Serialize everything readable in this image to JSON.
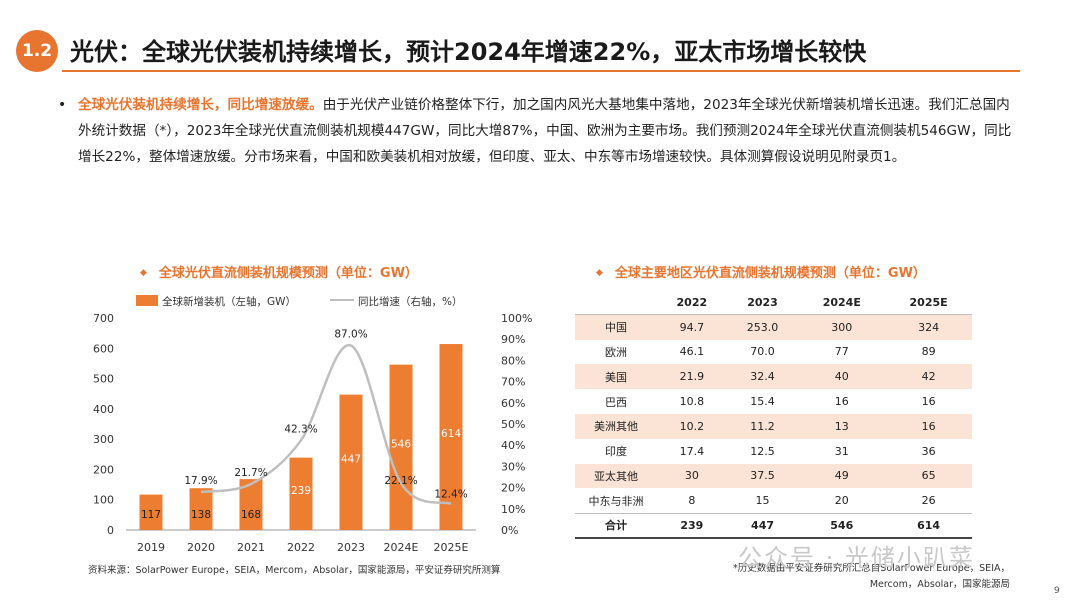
{
  "header": {
    "section_number": "1.2",
    "title": "光伏：全球光伏装机持续增长，预计2024年增速22%，亚太市场增长较快"
  },
  "bullet": {
    "highlight": "全球光伏装机持续增长，同比增速放缓。",
    "text": "由于光伏产业链价格整体下行，加之国内风光大基地集中落地，2023年全球光伏新增装机增长迅速。我们汇总国内外统计数据（*），2023年全球光伏直流侧装机规模447GW，同比大增87%，中国、欧洲为主要市场。我们预测2024年全球光伏直流侧装机546GW，同比增长22%，整体增速放缓。分市场来看，中国和欧美装机相对放缓，但印度、亚太、中东等市场增速较快。具体测算假设说明见附录页1。"
  },
  "chart_data": [
    {
      "type": "bar",
      "title": "全球光伏直流侧装机规模预测（单位：GW）",
      "categories": [
        "2019",
        "2020",
        "2021",
        "2022",
        "2023",
        "2024E",
        "2025E"
      ],
      "series": [
        {
          "name": "全球新增装机（左轴，GW）",
          "type": "bar",
          "axis": "left",
          "values": [
            117,
            138,
            168,
            239,
            447,
            546,
            614
          ],
          "labels": [
            "117",
            "138",
            "168",
            "239",
            "447",
            "546",
            "614"
          ]
        },
        {
          "name": "同比增速（右轴，%）",
          "type": "line",
          "axis": "right",
          "values": [
            null,
            17.9,
            21.7,
            42.3,
            87.0,
            22.1,
            12.4
          ],
          "labels": [
            "",
            "17.9%",
            "21.7%",
            "42.3%",
            "87.0%",
            "22.1%",
            "12.4%"
          ]
        }
      ],
      "ylim_left": [
        0,
        700
      ],
      "yticks_left": [
        "0",
        "100",
        "200",
        "300",
        "400",
        "500",
        "600",
        "700"
      ],
      "ylim_right": [
        0,
        100
      ],
      "yticks_right": [
        "0%",
        "10%",
        "20%",
        "30%",
        "40%",
        "50%",
        "60%",
        "70%",
        "80%",
        "90%",
        "100%"
      ],
      "grid": false,
      "legend": "top",
      "colors": {
        "bar": "#ed7d31",
        "line": "#bfbfbf",
        "bar_label": "#ffffff"
      }
    },
    {
      "type": "table",
      "title": "全球主要地区光伏直流侧装机规模预测（单位：GW）",
      "columns": [
        "",
        "2022",
        "2023",
        "2024E",
        "2025E"
      ],
      "rows": [
        [
          "中国",
          "94.7",
          "253.0",
          "300",
          "324"
        ],
        [
          "欧洲",
          "46.1",
          "70.0",
          "77",
          "89"
        ],
        [
          "美国",
          "21.9",
          "32.4",
          "40",
          "42"
        ],
        [
          "巴西",
          "10.8",
          "15.4",
          "16",
          "16"
        ],
        [
          "美洲其他",
          "10.2",
          "11.2",
          "13",
          "16"
        ],
        [
          "印度",
          "17.4",
          "12.5",
          "31",
          "36"
        ],
        [
          "亚太其他",
          "30",
          "37.5",
          "49",
          "65"
        ],
        [
          "中东与非洲",
          "8",
          "15",
          "20",
          "26"
        ],
        [
          "合计",
          "239",
          "447",
          "546",
          "614"
        ]
      ],
      "colors": {
        "shade": "#fbe4d5"
      }
    }
  ],
  "source_left": "资料来源：SolarPower Europe，SEIA，Mercom，Absolar，国家能源局，平安证券研究所测算",
  "source_right_1": "*历史数据由平安证券研究所汇总自SolarPower Europe，SEIA，",
  "source_right_2": "Mercom，Absolar，国家能源局",
  "watermark": "公众号 · 光储小趴菜",
  "page_number": "9"
}
